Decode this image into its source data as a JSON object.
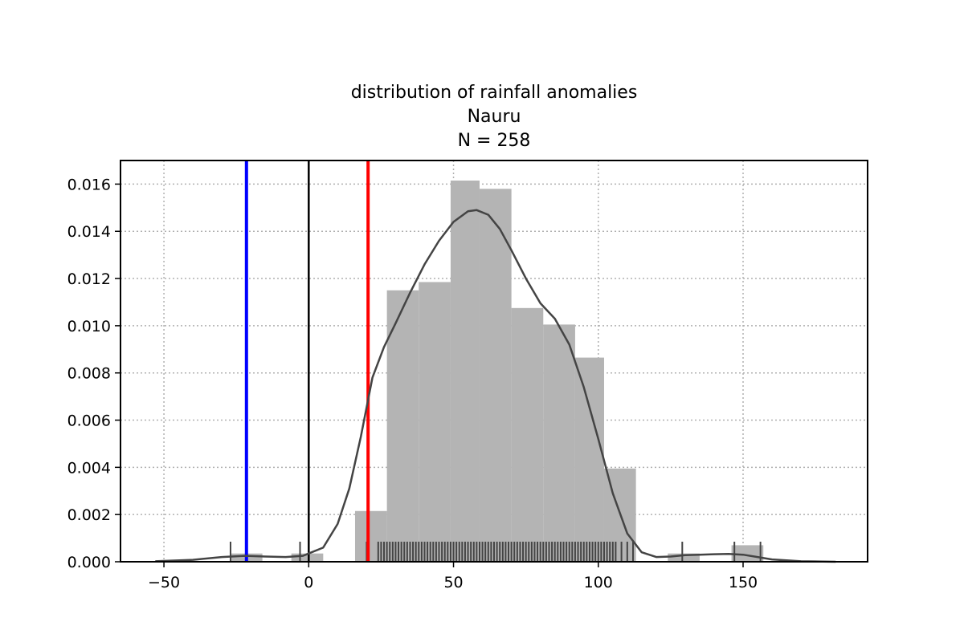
{
  "chart_data": {
    "type": "histogram",
    "title_lines": [
      "distribution of rainfall anomalies",
      "Nauru",
      "N = 258"
    ],
    "xlim": [
      -65,
      193
    ],
    "ylim": [
      0,
      0.017
    ],
    "grid": true,
    "x_ticks": [
      {
        "value": -50,
        "label": "−50"
      },
      {
        "value": 0,
        "label": "0"
      },
      {
        "value": 50,
        "label": "50"
      },
      {
        "value": 100,
        "label": "100"
      },
      {
        "value": 150,
        "label": "150"
      }
    ],
    "y_ticks": [
      {
        "value": 0.0,
        "label": "0.000"
      },
      {
        "value": 0.002,
        "label": "0.002"
      },
      {
        "value": 0.004,
        "label": "0.004"
      },
      {
        "value": 0.006,
        "label": "0.006"
      },
      {
        "value": 0.008,
        "label": "0.008"
      },
      {
        "value": 0.01,
        "label": "0.010"
      },
      {
        "value": 0.012,
        "label": "0.012"
      },
      {
        "value": 0.014,
        "label": "0.014"
      },
      {
        "value": 0.016,
        "label": "0.016"
      }
    ],
    "histogram_bins": [
      {
        "x0": -27,
        "x1": -16,
        "density": 0.00035
      },
      {
        "x0": -6,
        "x1": 5,
        "density": 0.00035
      },
      {
        "x0": 16,
        "x1": 27,
        "density": 0.00215
      },
      {
        "x0": 27,
        "x1": 38,
        "density": 0.0115
      },
      {
        "x0": 38,
        "x1": 49,
        "density": 0.01185
      },
      {
        "x0": 49,
        "x1": 59,
        "density": 0.01615
      },
      {
        "x0": 59,
        "x1": 70,
        "density": 0.0158
      },
      {
        "x0": 70,
        "x1": 81,
        "density": 0.01075
      },
      {
        "x0": 81,
        "x1": 92,
        "density": 0.01005
      },
      {
        "x0": 92,
        "x1": 102,
        "density": 0.00865
      },
      {
        "x0": 102,
        "x1": 113,
        "density": 0.00395
      },
      {
        "x0": 124,
        "x1": 135,
        "density": 0.00035
      },
      {
        "x0": 146,
        "x1": 157,
        "density": 0.0007
      }
    ],
    "kde_curve": {
      "x": [
        -53,
        -40,
        -30,
        -22,
        -15,
        -8,
        -2,
        5,
        10,
        14,
        18,
        22,
        26,
        30,
        35,
        40,
        45,
        50,
        55,
        58,
        62,
        66,
        70,
        75,
        80,
        85,
        90,
        95,
        100,
        105,
        110,
        115,
        120,
        125,
        130,
        135,
        140,
        145,
        150,
        155,
        160,
        170,
        182
      ],
      "y": [
        2e-05,
        8e-05,
        0.0002,
        0.00025,
        0.00022,
        0.0002,
        0.00025,
        0.0006,
        0.0016,
        0.0031,
        0.0053,
        0.0078,
        0.0091,
        0.0101,
        0.0114,
        0.0126,
        0.0136,
        0.0144,
        0.01485,
        0.0149,
        0.0147,
        0.0141,
        0.0132,
        0.012,
        0.01095,
        0.0103,
        0.0092,
        0.0074,
        0.0052,
        0.0029,
        0.0012,
        0.0004,
        0.0002,
        0.00022,
        0.00028,
        0.0003,
        0.00032,
        0.00033,
        0.0003,
        0.0002,
        0.0001,
        2e-05,
        0.0
      ]
    },
    "rug_x": [
      -27,
      -3,
      20,
      24,
      25,
      26,
      27,
      28,
      29,
      30,
      31,
      32,
      33,
      34,
      35,
      36,
      37,
      38,
      39,
      40,
      41,
      42,
      43,
      44,
      45,
      46,
      47,
      48,
      49,
      50,
      51,
      52,
      53,
      54,
      55,
      56,
      57,
      58,
      59,
      60,
      61,
      62,
      63,
      64,
      65,
      66,
      67,
      68,
      69,
      70,
      71,
      72,
      73,
      74,
      75,
      76,
      77,
      78,
      79,
      80,
      81,
      82,
      83,
      84,
      85,
      86,
      87,
      88,
      89,
      90,
      91,
      92,
      93,
      94,
      95,
      96,
      97,
      98,
      99,
      100,
      101,
      102,
      103,
      104,
      105,
      106,
      108,
      110,
      112,
      129,
      147,
      156
    ],
    "vertical_lines": [
      {
        "x": -21.5,
        "color": "#0000ff"
      },
      {
        "x": 0,
        "color": "#000000"
      },
      {
        "x": 20.5,
        "color": "#ff0000"
      }
    ],
    "colors": {
      "bars": "#b4b4b4",
      "kde": "#444444",
      "rug": "#444444",
      "grid": "#b0b0b0"
    }
  }
}
